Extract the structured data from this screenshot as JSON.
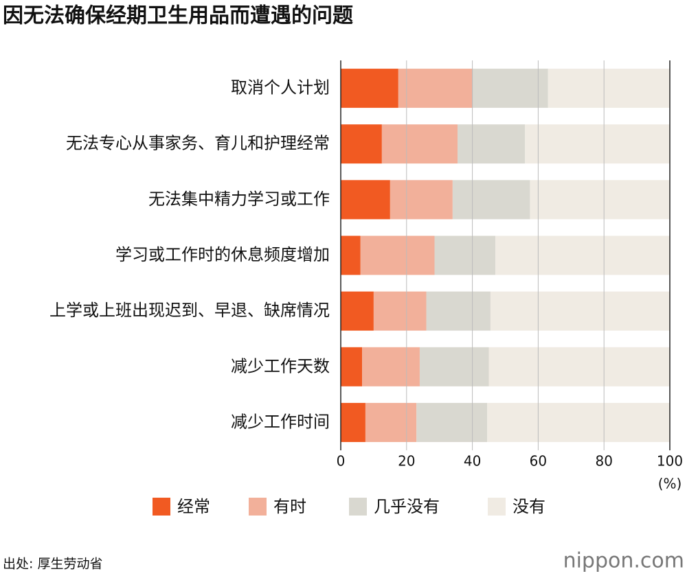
{
  "chart_data": {
    "type": "stacked-bar-horizontal",
    "title": "因无法确保经期卫生用品而遭遇的问题",
    "categories": [
      "取消个人计划",
      "无法专心从事家务、育儿和护理经常",
      "无法集中精力学习或工作",
      "学习或工作时的休息频度增加",
      "上学或上班出现迟到、早退、缺席情况",
      "减少工作天数",
      "减少工作时间"
    ],
    "series": [
      {
        "name": "经常",
        "color": "#f15a22",
        "values": [
          17.5,
          12.5,
          15,
          6,
          10,
          6.5,
          7.5
        ]
      },
      {
        "name": "有时",
        "color": "#f2b09a",
        "values": [
          22.5,
          23,
          19,
          22.5,
          16,
          17.5,
          15.5
        ]
      },
      {
        "name": "几乎没有",
        "color": "#d9d8d0",
        "values": [
          23,
          20.5,
          23.5,
          18.5,
          19.5,
          21,
          21.5
        ]
      },
      {
        "name": "没有",
        "color": "#f0ebe3",
        "values": [
          37,
          44,
          42.5,
          53,
          54.5,
          55,
          55.5
        ]
      }
    ],
    "xlim": [
      0,
      100
    ],
    "xticks": [
      0,
      20,
      40,
      60,
      80,
      100
    ],
    "x_unit": "(%)",
    "grid": true,
    "source": "出处: 厚生劳动省",
    "logo": "nippon.com"
  }
}
